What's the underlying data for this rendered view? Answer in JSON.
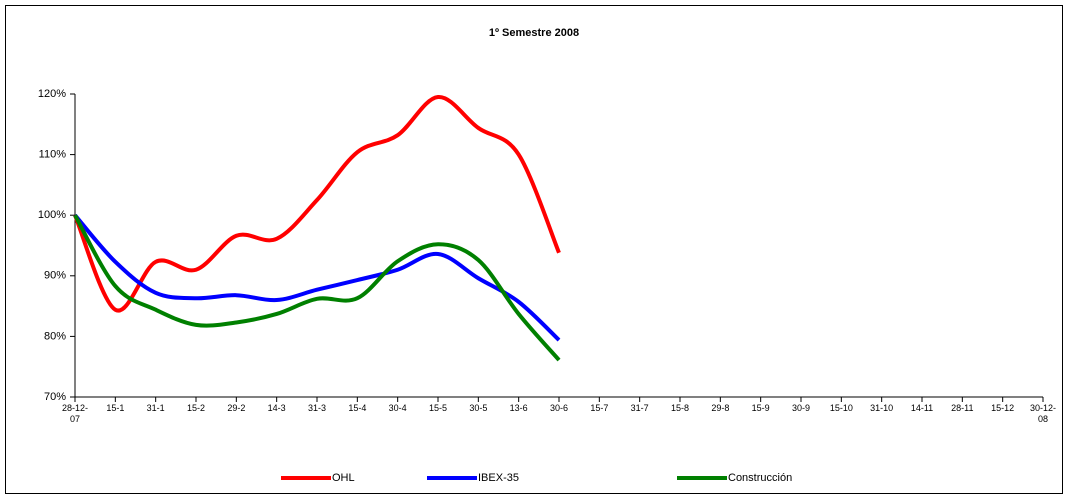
{
  "chart_data": {
    "type": "line",
    "title": "1º Semestre 2008",
    "categories": [
      "28-12-07",
      "15-1",
      "31-1",
      "15-2",
      "29-2",
      "14-3",
      "31-3",
      "15-4",
      "30-4",
      "15-5",
      "30-5",
      "13-6",
      "30-6",
      "15-7",
      "31-7",
      "15-8",
      "29-8",
      "15-9",
      "30-9",
      "15-10",
      "31-10",
      "14-11",
      "28-11",
      "15-12",
      "30-12-08"
    ],
    "series": [
      {
        "name": "OHL",
        "color": "#ff0000",
        "values": [
          100,
          84.4,
          92.3,
          91,
          96.6,
          96.1,
          102.5,
          110.4,
          113.2,
          119.5,
          114.4,
          110,
          93.8,
          null,
          null,
          null,
          null,
          null,
          null,
          null,
          null,
          null,
          null,
          null,
          null
        ]
      },
      {
        "name": "IBEX-35",
        "color": "#0000ff",
        "values": [
          100,
          92.3,
          87.2,
          86.3,
          86.8,
          86,
          87.7,
          89.3,
          91,
          93.6,
          89.6,
          85.7,
          79.4,
          null,
          null,
          null,
          null,
          null,
          null,
          null,
          null,
          null,
          null,
          null,
          null
        ]
      },
      {
        "name": "Construcción",
        "color": "#008000",
        "values": [
          100,
          88.3,
          84.4,
          81.9,
          82.3,
          83.7,
          86.2,
          86.3,
          92.4,
          95.2,
          92.6,
          83.7,
          76.1,
          null,
          null,
          null,
          null,
          null,
          null,
          null,
          null,
          null,
          null,
          null,
          null
        ]
      }
    ],
    "ylim": [
      70,
      120
    ],
    "yticks": [
      {
        "value": 70,
        "label": "70%"
      },
      {
        "value": 80,
        "label": "80%"
      },
      {
        "value": 90,
        "label": "90%"
      },
      {
        "value": 100,
        "label": "100%"
      },
      {
        "value": 110,
        "label": "110%"
      },
      {
        "value": 120,
        "label": "120%"
      }
    ],
    "grid": false,
    "legend": "bottom"
  }
}
